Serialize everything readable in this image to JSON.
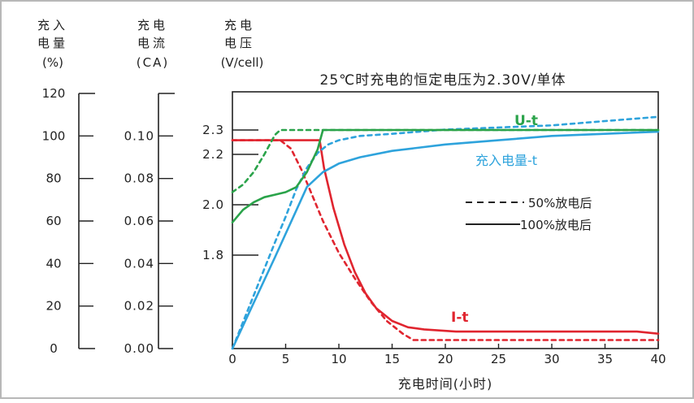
{
  "chart_data": {
    "type": "line",
    "title": "25℃时充电的恒定电压为2.30V/单体",
    "xlabel": "充电时间(小时)",
    "xlim": [
      0,
      40
    ],
    "x_ticks": [
      "0",
      "5",
      "10",
      "15",
      "20",
      "25",
      "30",
      "35",
      "40"
    ],
    "axes": {
      "soc": {
        "header": [
          "充入",
          "电量",
          "(%)"
        ],
        "ticks": [
          "0",
          "20",
          "40",
          "60",
          "80",
          "100",
          "120"
        ],
        "ylim": [
          0,
          120
        ]
      },
      "current": {
        "header": [
          "充电",
          "电流",
          "(CA)"
        ],
        "ticks": [
          "0.00",
          "0.02",
          "0.04",
          "0.06",
          "0.08",
          "0.10"
        ],
        "ylim": [
          0,
          0.12
        ]
      },
      "voltage": {
        "header": [
          "充电",
          "电压",
          "(V/cell)"
        ],
        "ticks": [
          "1.8",
          "2.0",
          "2.2",
          "2.3"
        ],
        "tick_values": [
          1.8,
          2.0,
          2.2,
          2.3
        ]
      }
    },
    "curve_labels": {
      "voltage": "U-t",
      "soc": "充入电量-t",
      "current": "I-t"
    },
    "legend": [
      {
        "label": "50%放电后",
        "style": "dashed"
      },
      {
        "label": "100%放电后",
        "style": "solid"
      }
    ],
    "colors": {
      "voltage": "#2aa34a",
      "soc": "#2ea3dc",
      "current": "#e0252f"
    },
    "series": [
      {
        "group": "current",
        "style": "dashed",
        "axis": "current",
        "points": [
          [
            0,
            0.098
          ],
          [
            4.5,
            0.098
          ],
          [
            5.5,
            0.094
          ],
          [
            6.5,
            0.084
          ],
          [
            7.5,
            0.072
          ],
          [
            8.5,
            0.06
          ],
          [
            10,
            0.045
          ],
          [
            11.5,
            0.033
          ],
          [
            13,
            0.022
          ],
          [
            14.5,
            0.013
          ],
          [
            16,
            0.007
          ],
          [
            17,
            0.004
          ],
          [
            20,
            0.004
          ],
          [
            30,
            0.004
          ],
          [
            40,
            0.004
          ]
        ]
      },
      {
        "group": "current",
        "style": "solid",
        "axis": "current",
        "points": [
          [
            0,
            0.098
          ],
          [
            8.2,
            0.098
          ],
          [
            8.6,
            0.085
          ],
          [
            9.5,
            0.066
          ],
          [
            10.5,
            0.049
          ],
          [
            11.5,
            0.036
          ],
          [
            12.5,
            0.026
          ],
          [
            13.5,
            0.019
          ],
          [
            15,
            0.013
          ],
          [
            16.5,
            0.01
          ],
          [
            18,
            0.009
          ],
          [
            21,
            0.008
          ],
          [
            30,
            0.008
          ],
          [
            38,
            0.008
          ],
          [
            40,
            0.007
          ]
        ]
      },
      {
        "group": "soc",
        "style": "dashed",
        "axis": "soc",
        "points": [
          [
            0,
            0
          ],
          [
            2,
            25
          ],
          [
            4,
            50
          ],
          [
            5,
            62
          ],
          [
            6,
            75
          ],
          [
            7,
            85
          ],
          [
            8,
            92
          ],
          [
            9,
            96
          ],
          [
            10,
            98
          ],
          [
            12,
            100
          ],
          [
            15,
            101
          ],
          [
            20,
            103
          ],
          [
            25,
            104
          ],
          [
            30,
            105
          ],
          [
            35,
            107
          ],
          [
            40,
            109
          ]
        ]
      },
      {
        "group": "soc",
        "style": "solid",
        "axis": "soc",
        "points": [
          [
            0,
            0
          ],
          [
            4,
            43
          ],
          [
            7,
            76
          ],
          [
            8.5,
            83
          ],
          [
            10,
            87
          ],
          [
            12,
            90
          ],
          [
            15,
            93
          ],
          [
            20,
            96
          ],
          [
            25,
            98
          ],
          [
            30,
            100
          ],
          [
            35,
            101
          ],
          [
            40,
            102
          ]
        ]
      },
      {
        "group": "voltage",
        "style": "dashed",
        "axis": "voltage",
        "points": [
          [
            0,
            2.05
          ],
          [
            1,
            2.08
          ],
          [
            2,
            2.13
          ],
          [
            3,
            2.2
          ],
          [
            4,
            2.28
          ],
          [
            4.5,
            2.3
          ],
          [
            40,
            2.3
          ]
        ]
      },
      {
        "group": "voltage",
        "style": "solid",
        "axis": "voltage",
        "points": [
          [
            0,
            1.93
          ],
          [
            1,
            1.98
          ],
          [
            2,
            2.01
          ],
          [
            3,
            2.03
          ],
          [
            4,
            2.04
          ],
          [
            5,
            2.05
          ],
          [
            6,
            2.07
          ],
          [
            7,
            2.13
          ],
          [
            8,
            2.22
          ],
          [
            8.5,
            2.3
          ],
          [
            40,
            2.3
          ]
        ]
      }
    ]
  }
}
